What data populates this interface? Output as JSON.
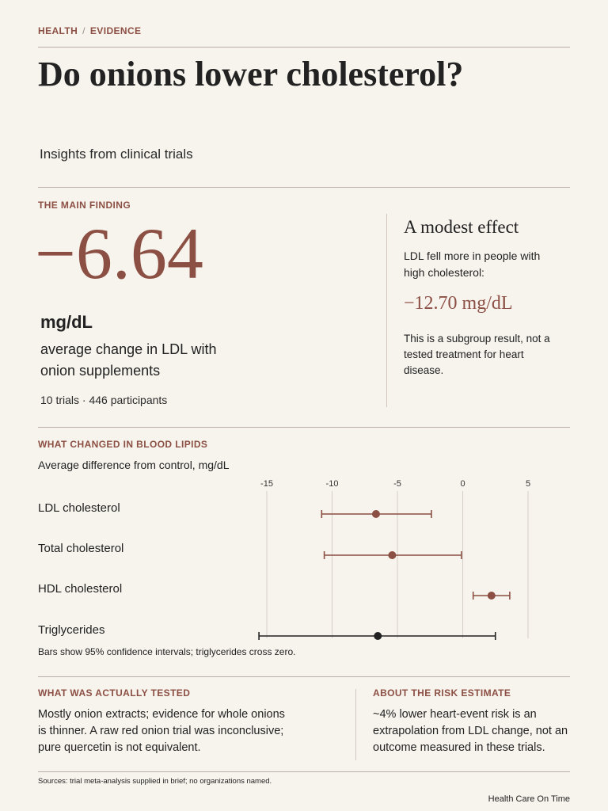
{
  "breadcrumb": {
    "section": "HEALTH",
    "separator": "/",
    "subsection": "EVIDENCE"
  },
  "title": "Do onions lower cholesterol?",
  "subtitle": "Insights from clinical trials",
  "main_finding": {
    "kicker": "THE MAIN FINDING",
    "value": "−6.64",
    "unit": "mg/dL",
    "description": "average change in LDL with onion supplements",
    "meta": "10 trials · 446 participants"
  },
  "side_panel": {
    "heading": "A modest effect",
    "text": "LDL fell more in people with high cholesterol:",
    "value": "−12.70 mg/dL",
    "note": "This is a subgroup result, not a tested treatment for heart disease."
  },
  "lipids": {
    "kicker": "WHAT CHANGED IN BLOOD LIPIDS",
    "subtitle": "Average difference from control, mg/dL",
    "note": "Bars show 95% confidence intervals; triglycerides cross zero."
  },
  "chart_data": {
    "type": "scatter",
    "xlim": [
      -15,
      5
    ],
    "ticks": [
      -15,
      -10,
      -5,
      0,
      5
    ],
    "grid": true,
    "series": [
      {
        "label": "LDL cholesterol",
        "estimate": -6.64,
        "ci_low": -10.8,
        "ci_high": -2.4,
        "color": "#8c4f43"
      },
      {
        "label": "Total cholesterol",
        "estimate": -5.4,
        "ci_low": -10.6,
        "ci_high": -0.1,
        "color": "#8c4f43"
      },
      {
        "label": "HDL cholesterol",
        "estimate": 2.2,
        "ci_low": 0.8,
        "ci_high": 3.6,
        "color": "#8c4f43"
      },
      {
        "label": "Triglycerides",
        "estimate": -6.5,
        "ci_low": -15.6,
        "ci_high": 2.5,
        "color": "#222222"
      }
    ]
  },
  "tested": {
    "kicker": "WHAT WAS ACTUALLY TESTED",
    "text": "Mostly onion extracts; evidence for whole onions is thinner. A raw red onion trial was inconclusive; pure quercetin is not equivalent."
  },
  "risk": {
    "kicker": "ABOUT THE RISK ESTIMATE",
    "text": "~4% lower heart-event risk is an extrapolation from LDL change, not an outcome measured in these trials."
  },
  "footer": {
    "sources": "Sources: trial meta-analysis supplied in brief; no organizations named.",
    "publisher": "Health Care On Time"
  }
}
